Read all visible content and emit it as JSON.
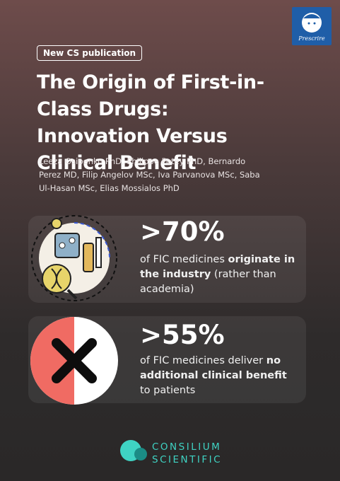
{
  "badge": "New CS publication",
  "logo": "Prescrire",
  "title": "The Origin of First-in-Class Drugs: Innovation Versus Clinical Benefit",
  "authors": "Leeza Osipenko PhD, Philippe Potey PhD, Bernardo Perez MD, Filip Angelov MSc, Iva Parvanova MSc, Saba Ul-Hasan MSc, Elias Mossialos PhD",
  "stats": [
    {
      "value": ">70%",
      "text": [
        {
          "text": "of FIC medicines ",
          "bold": false
        },
        {
          "text": "originate in the industry",
          "bold": true
        },
        {
          "text": " (rather than academia)",
          "bold": false
        }
      ]
    },
    {
      "value": ">55%",
      "text": [
        {
          "text": "of FIC medicines deliver ",
          "bold": false
        },
        {
          "text": "no additional clinical benefit",
          "bold": true
        },
        {
          "text": " to patients",
          "bold": false
        }
      ]
    }
  ],
  "footer": {
    "brand": [
      "CONSILIUM",
      "SCIENTIFIC"
    ]
  }
}
